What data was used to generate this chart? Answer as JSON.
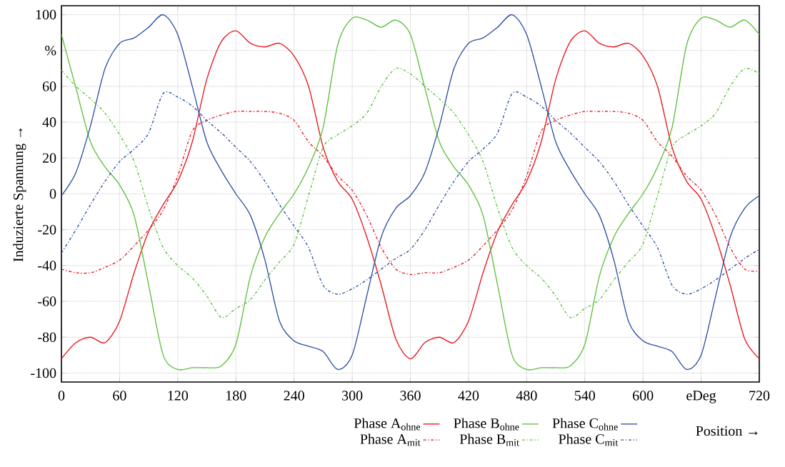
{
  "chart_data": {
    "type": "line",
    "xlabel": "Position →",
    "ylabel": "Induzierte Spannung →",
    "x": [
      0,
      15,
      30,
      45,
      60,
      75,
      90,
      105,
      120,
      135,
      150,
      165,
      180,
      195,
      210,
      225,
      240,
      255,
      270,
      285,
      300,
      315,
      330,
      345,
      360,
      375,
      390,
      405,
      420,
      435,
      450,
      465,
      480,
      495,
      510,
      525,
      540,
      555,
      570,
      585,
      600,
      615,
      630,
      645,
      660,
      675,
      690,
      705,
      720
    ],
    "series": [
      {
        "name": "Phase A$_{ohne}$",
        "color": "#e8141c",
        "line_style": "solid",
        "values": [
          -92,
          -83,
          -80,
          -83,
          -71,
          -44,
          -21,
          -6,
          7,
          29,
          64,
          85,
          91,
          84,
          82,
          84,
          77,
          60,
          26,
          7,
          -3,
          -24,
          -51,
          -81,
          -92,
          -83,
          -80,
          -83,
          -71,
          -44,
          -21,
          -6,
          7,
          29,
          64,
          85,
          91,
          84,
          82,
          84,
          77,
          60,
          26,
          7,
          -3,
          -24,
          -51,
          -81,
          -92
        ]
      },
      {
        "name": "Phase B$_{ohne}$",
        "color": "#5cbf3c",
        "line_style": "solid",
        "values": [
          89,
          59,
          29,
          15,
          5,
          -12,
          -51,
          -90,
          -98,
          -97,
          -97,
          -96,
          -84,
          -46,
          -24,
          -11,
          0,
          15,
          37,
          83,
          98,
          97,
          93,
          97,
          89,
          59,
          29,
          15,
          5,
          -12,
          -51,
          -90,
          -98,
          -97,
          -97,
          -96,
          -84,
          -46,
          -24,
          -11,
          0,
          15,
          37,
          83,
          98,
          97,
          93,
          97,
          89
        ]
      },
      {
        "name": "Phase C$_{ohne}$",
        "color": "#2e4fa3",
        "line_style": "solid",
        "values": [
          -1,
          12,
          38,
          70,
          84,
          87,
          93,
          100,
          89,
          60,
          29,
          13,
          0,
          -12,
          -37,
          -71,
          -82,
          -85,
          -88,
          -98,
          -90,
          -57,
          -24,
          -8,
          -1,
          12,
          38,
          70,
          84,
          87,
          93,
          100,
          89,
          60,
          29,
          13,
          0,
          -12,
          -37,
          -71,
          -82,
          -85,
          -88,
          -98,
          -90,
          -57,
          -24,
          -8,
          -1
        ]
      },
      {
        "name": "Phase A$_{mit}$",
        "color": "#e8141c",
        "line_style": "dashdot",
        "values": [
          -42,
          -44,
          -44,
          -41,
          -37,
          -29,
          -20,
          -9,
          10,
          35,
          41,
          44,
          46,
          46,
          46,
          45,
          41,
          29,
          21,
          10,
          2,
          -12,
          -30,
          -42,
          -45,
          -44,
          -44,
          -41,
          -37,
          -29,
          -20,
          -9,
          10,
          35,
          41,
          44,
          46,
          46,
          46,
          45,
          41,
          29,
          21,
          10,
          2,
          -12,
          -30,
          -42,
          -43
        ]
      },
      {
        "name": "Phase B$_{mit}$",
        "color": "#5cbf3c",
        "line_style": "dashdot",
        "values": [
          69,
          60,
          53,
          45,
          33,
          18,
          -8,
          -30,
          -40,
          -47,
          -57,
          -69,
          -64,
          -59,
          -48,
          -38,
          -28,
          -1,
          26,
          33,
          38,
          45,
          60,
          70,
          67,
          60,
          53,
          45,
          33,
          18,
          -8,
          -30,
          -40,
          -47,
          -57,
          -69,
          -64,
          -59,
          -48,
          -38,
          -28,
          -1,
          26,
          33,
          38,
          45,
          60,
          70,
          67
        ]
      },
      {
        "name": "Phase C$_{mit}$",
        "color": "#2e4fa3",
        "line_style": "dashdot",
        "values": [
          -33,
          -20,
          -6,
          7,
          18,
          25,
          34,
          56,
          54,
          49,
          41,
          34,
          26,
          18,
          7,
          -6,
          -18,
          -30,
          -51,
          -56,
          -53,
          -48,
          -42,
          -36,
          -31,
          -20,
          -6,
          7,
          18,
          25,
          34,
          56,
          54,
          49,
          41,
          34,
          26,
          18,
          7,
          -6,
          -18,
          -30,
          -51,
          -56,
          -53,
          -48,
          -42,
          -36,
          -31
        ]
      }
    ],
    "xlim": [
      0,
      720
    ],
    "ylim": [
      -105,
      105
    ],
    "xticks": [
      0,
      60,
      120,
      180,
      240,
      300,
      360,
      420,
      480,
      540,
      600,
      {
        "value": 660,
        "label": "eDeg"
      },
      720
    ],
    "yticks": [
      -100,
      -80,
      -60,
      -40,
      -20,
      0,
      20,
      40,
      60,
      {
        "value": 80,
        "label": "%"
      },
      100
    ],
    "grid": true,
    "legend": "bottom"
  }
}
